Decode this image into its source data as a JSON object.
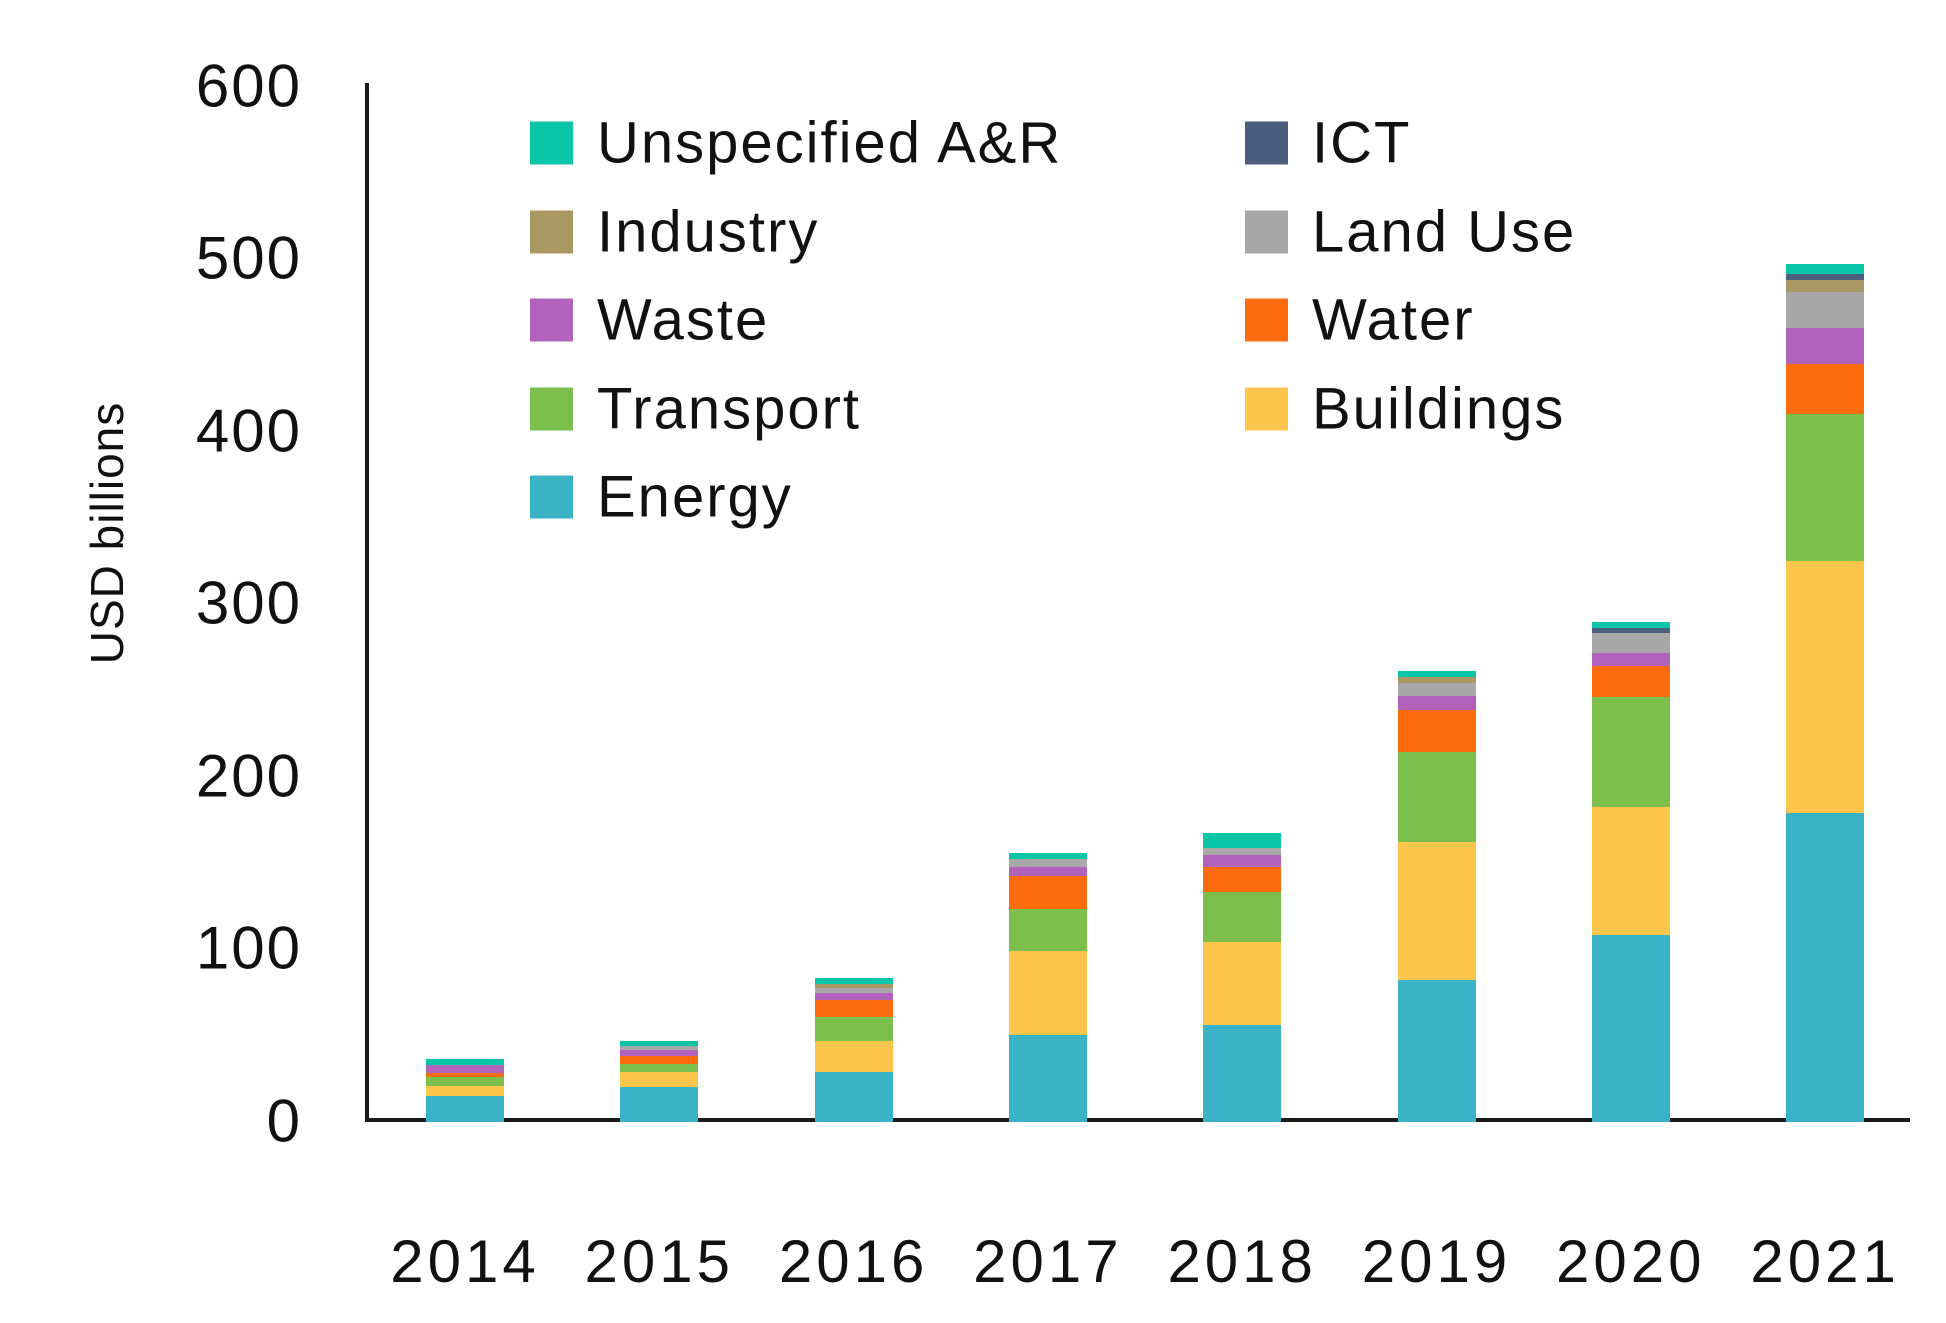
{
  "chart_data": {
    "type": "bar",
    "stacked": true,
    "ylabel": "USD billions",
    "ylim": [
      0,
      600
    ],
    "yticks": [
      0,
      100,
      200,
      300,
      400,
      500,
      600
    ],
    "grid": false,
    "legend_position": "top-left-inside-two-columns",
    "categories": [
      "2014",
      "2015",
      "2016",
      "2017",
      "2018",
      "2019",
      "2020",
      "2021"
    ],
    "series": [
      {
        "name": "Energy",
        "color": "#39B3C5",
        "values": [
          15,
          20,
          29,
          50.5,
          56.5,
          82,
          108.5,
          179
        ]
      },
      {
        "name": "Buildings",
        "color": "#FDC54C",
        "values": [
          6,
          9,
          18,
          48.5,
          48,
          80,
          74,
          146
        ]
      },
      {
        "name": "Transport",
        "color": "#7DBF4D",
        "values": [
          5,
          4.5,
          14,
          24.5,
          29,
          52.5,
          63.5,
          85
        ]
      },
      {
        "name": "Water",
        "color": "#FB6C10",
        "values": [
          2.5,
          4.5,
          9.5,
          19,
          14,
          24,
          18.5,
          29
        ]
      },
      {
        "name": "Waste",
        "color": "#B162BB",
        "values": [
          4.5,
          3.5,
          4.5,
          5,
          7.5,
          8.5,
          7,
          21
        ]
      },
      {
        "name": "Land Use",
        "color": "#A8A8A8",
        "values": [
          0,
          2.5,
          2.5,
          5,
          4,
          7.5,
          12,
          21
        ]
      },
      {
        "name": "Industry",
        "color": "#AA9763",
        "values": [
          0,
          0,
          2.5,
          0,
          0,
          3.5,
          0,
          7
        ]
      },
      {
        "name": "ICT",
        "color": "#4A5D7D",
        "values": [
          0,
          0,
          0,
          0,
          0,
          0,
          3,
          3.5
        ]
      },
      {
        "name": "Unspecified A&R",
        "color": "#0AC5A8",
        "values": [
          3.5,
          3,
          3.5,
          3.5,
          8.5,
          3.5,
          3.5,
          5.5
        ]
      }
    ],
    "legend_columns": [
      [
        "Unspecified A&R",
        "Industry",
        "Waste",
        "Transport",
        "Energy"
      ],
      [
        "ICT",
        "Land Use",
        "Water",
        "Buildings"
      ]
    ]
  }
}
